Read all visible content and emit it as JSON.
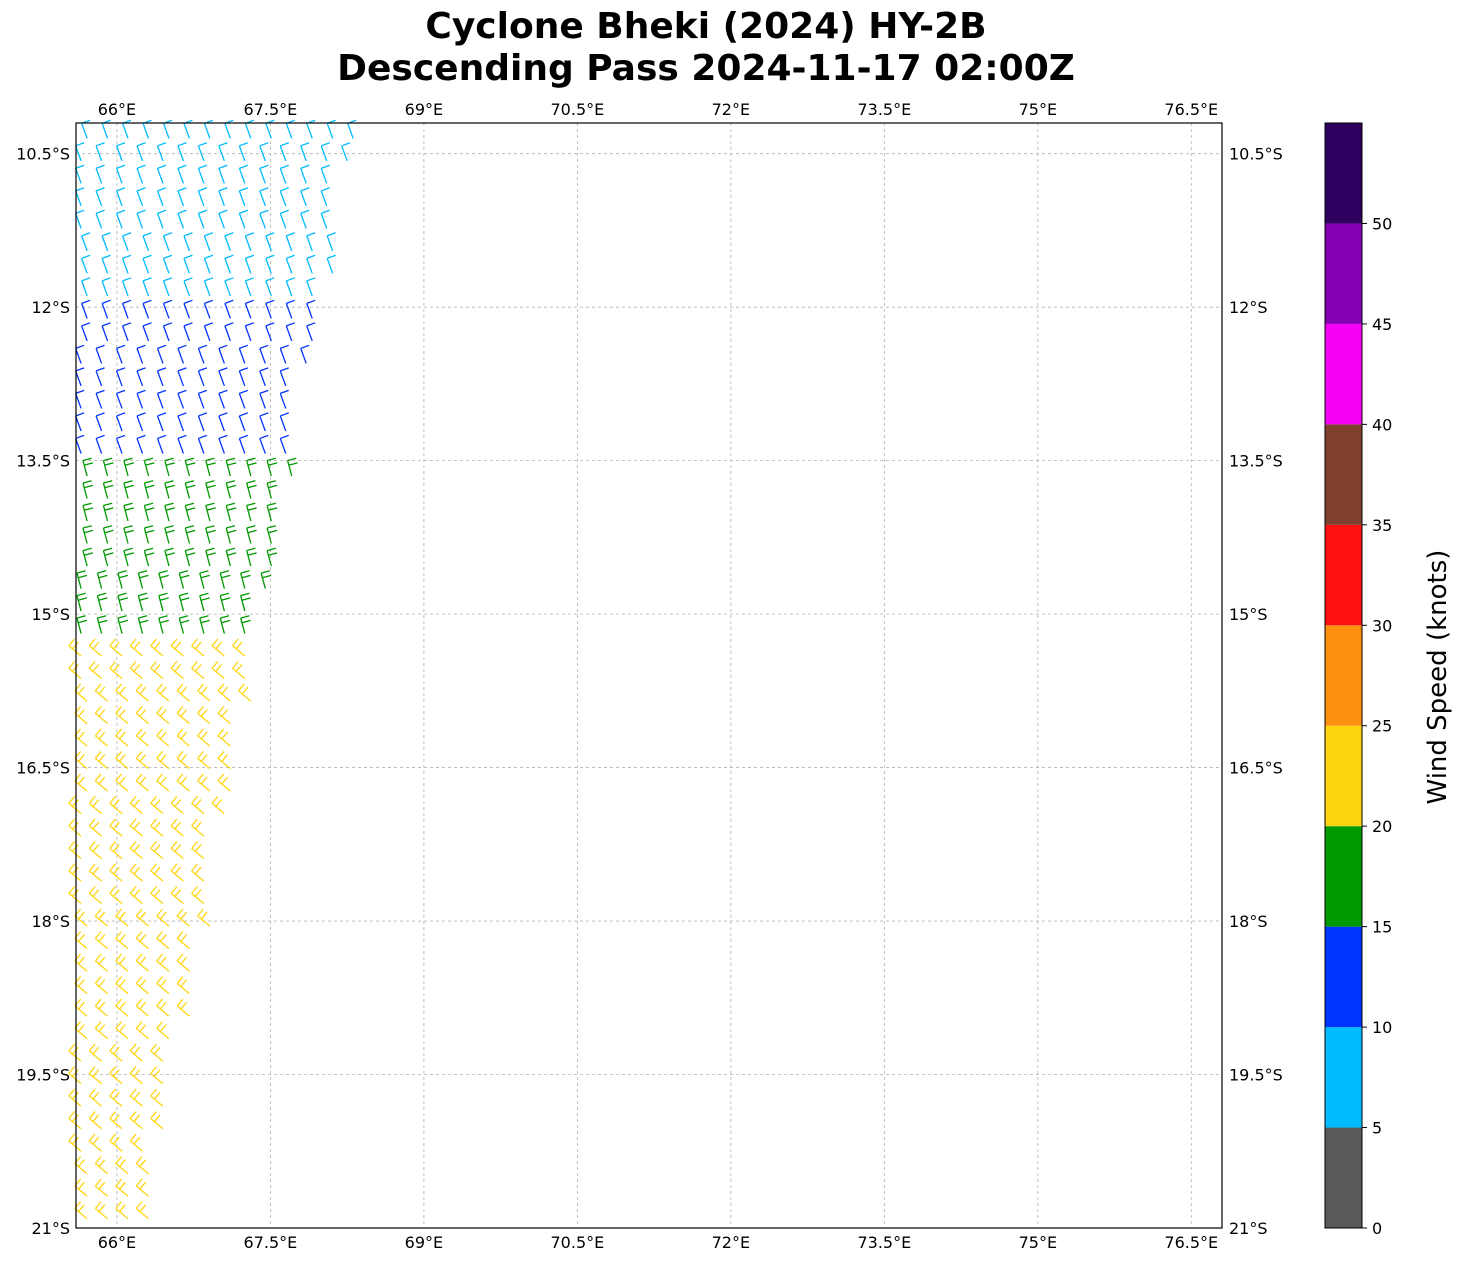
{
  "title_line1": "Cyclone Bheki (2024) HY-2B",
  "title_line2": "Descending Pass 2024-11-17 02:00Z",
  "map": {
    "lon_range": [
      65.6,
      76.8
    ],
    "lat_range": [
      -21.0,
      -10.2
    ],
    "lon_ticks": [
      {
        "value": 66.0,
        "label": "66°E"
      },
      {
        "value": 67.5,
        "label": "67.5°E"
      },
      {
        "value": 69.0,
        "label": "69°E"
      },
      {
        "value": 70.5,
        "label": "70.5°E"
      },
      {
        "value": 72.0,
        "label": "72°E"
      },
      {
        "value": 73.5,
        "label": "73.5°E"
      },
      {
        "value": 75.0,
        "label": "75°E"
      },
      {
        "value": 76.5,
        "label": "76.5°E"
      }
    ],
    "lat_ticks": [
      {
        "value": -10.5,
        "label": "10.5°S"
      },
      {
        "value": -12.0,
        "label": "12°S"
      },
      {
        "value": -13.5,
        "label": "13.5°S"
      },
      {
        "value": -15.0,
        "label": "15°S"
      },
      {
        "value": -16.5,
        "label": "16.5°S"
      },
      {
        "value": -18.0,
        "label": "18°S"
      },
      {
        "value": -19.5,
        "label": "19.5°S"
      },
      {
        "value": -21.0,
        "label": "21°S"
      }
    ],
    "gridlines": true,
    "swath": "wind barbs along west edge, 65.6°E to about 68.4°E"
  },
  "colorbar": {
    "label": "Wind Speed (knots)",
    "bins": [
      {
        "min": 0,
        "max": 5,
        "color": "#595959"
      },
      {
        "min": 5,
        "max": 10,
        "color": "#00bbff"
      },
      {
        "min": 10,
        "max": 15,
        "color": "#0033ff"
      },
      {
        "min": 15,
        "max": 20,
        "color": "#009900"
      },
      {
        "min": 20,
        "max": 25,
        "color": "#ffd511"
      },
      {
        "min": 25,
        "max": 30,
        "color": "#ff8f0e"
      },
      {
        "min": 30,
        "max": 35,
        "color": "#ff1111"
      },
      {
        "min": 35,
        "max": 40,
        "color": "#80402e"
      },
      {
        "min": 40,
        "max": 45,
        "color": "#f500f5"
      },
      {
        "min": 45,
        "max": 50,
        "color": "#8400b3"
      },
      {
        "min": 50,
        "max": 55,
        "color": "#2d0060"
      }
    ],
    "tick_labels": [
      "0",
      "5",
      "10",
      "15",
      "20",
      "25",
      "30",
      "35",
      "40",
      "45",
      "50"
    ]
  }
}
